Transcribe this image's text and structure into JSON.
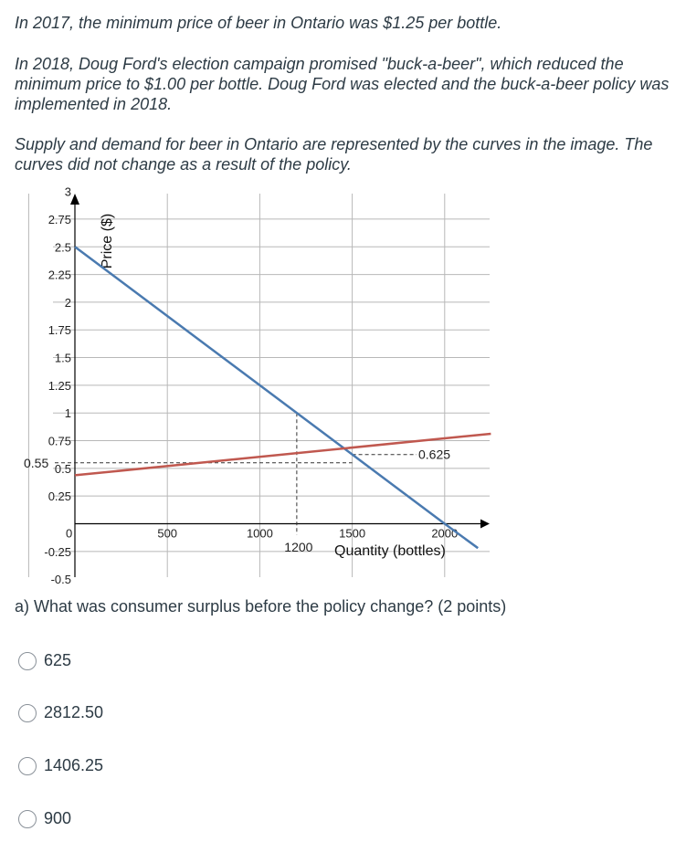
{
  "intro": {
    "p1": "In 2017, the minimum price of beer in Ontario was $1.25 per bottle.",
    "p2": "In 2018, Doug Ford's election campaign promised \"buck-a-beer\", which reduced the minimum price to $1.00 per bottle. Doug Ford was elected and the buck-a-beer policy was implemented in 2018.",
    "p3": "Supply and demand for beer in Ontario are represented by the curves in the image. The curves did not change as a result of the policy."
  },
  "chart_data": {
    "type": "line",
    "xlabel": "Quantity (bottles)",
    "ylabel": "Price ($)",
    "xlim": [
      -450,
      2250
    ],
    "ylim": [
      -0.75,
      3.0
    ],
    "x_ticks": [
      "500",
      "1000",
      "1500",
      "2000"
    ],
    "x_origin_label": "0",
    "y_ticks": [
      "3",
      "2.75",
      "2.5",
      "2.25",
      "2",
      "1.75",
      "1.5",
      "1.25",
      "1",
      "0.75",
      "0.5",
      "0.25",
      "-0.25",
      "-0.5"
    ],
    "series": [
      {
        "key": "demand",
        "color": "#4a7ab0",
        "points": [
          [
            0,
            2.5
          ],
          [
            2000,
            0.0
          ]
        ]
      },
      {
        "key": "supply",
        "color": "#c0584f",
        "points": [
          [
            0,
            0.4375
          ],
          [
            2250,
            0.8125
          ]
        ]
      }
    ],
    "annotations": [
      {
        "text": "0.55",
        "kind": "y-marker",
        "y": 0.55,
        "x_to": 1500
      },
      {
        "text": "0.625",
        "kind": "y-marker",
        "y": 0.625,
        "x_from": 1500
      },
      {
        "text": "1200",
        "kind": "x-marker",
        "x": 1200,
        "y_to": 1.0
      }
    ]
  },
  "question": {
    "text": "a) What was consumer surplus before the policy change? (2 points)",
    "options": [
      "625",
      "2812.50",
      "1406.25",
      "900"
    ]
  }
}
